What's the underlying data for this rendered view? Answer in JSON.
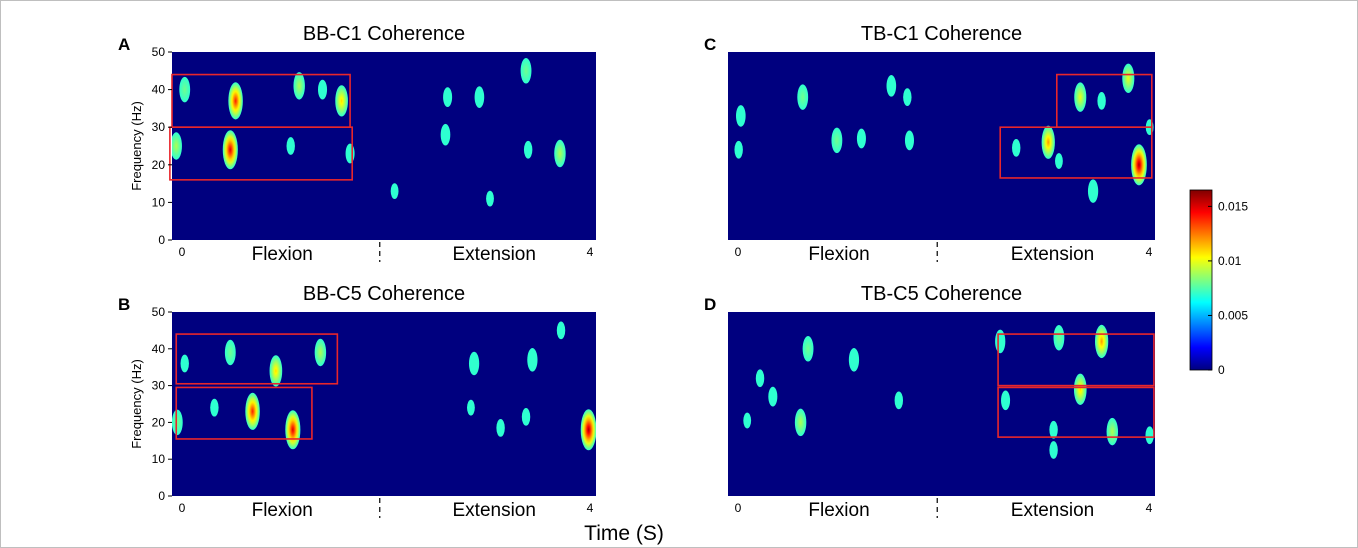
{
  "colors": {
    "background": "#00007f",
    "box": "#e8262b",
    "colormap": [
      "#00007f",
      "#0000ff",
      "#007fff",
      "#00ffff",
      "#7fff7f",
      "#ffff00",
      "#ff7f00",
      "#ff0000",
      "#7f0000"
    ]
  },
  "figure": {
    "shared_xlabel": "Time (S)",
    "phase_left": "Flexion",
    "phase_right": "Extension",
    "t_start": "0",
    "t_end": "4"
  },
  "colorbar": {
    "min": 0,
    "max": 0.0165,
    "ticks": [
      "0",
      "0.005",
      "0.01",
      "0.015"
    ],
    "tick_values": [
      0,
      0.005,
      0.01,
      0.015
    ]
  },
  "chart_data": [
    {
      "type": "heatmap",
      "panel": "A",
      "title": "BB-C1 Coherence",
      "ylabel": "Frequency (Hz)",
      "ylim": [
        0,
        50
      ],
      "yticks": [
        "0",
        "10",
        "20",
        "30",
        "40",
        "50"
      ],
      "xlim": [
        0,
        4
      ],
      "boxes": [
        {
          "t": [
            0.0,
            1.68
          ],
          "f": [
            30,
            44
          ]
        },
        {
          "t": [
            -0.02,
            1.7
          ],
          "f": [
            16,
            30
          ]
        }
      ],
      "blobs": [
        {
          "t": 0.12,
          "f": 40,
          "v": 0.008
        },
        {
          "t": 0.6,
          "f": 37,
          "v": 0.014
        },
        {
          "t": 1.2,
          "f": 41,
          "v": 0.009
        },
        {
          "t": 1.42,
          "f": 40,
          "v": 0.005
        },
        {
          "t": 1.6,
          "f": 37,
          "v": 0.011
        },
        {
          "t": 0.55,
          "f": 24,
          "v": 0.015
        },
        {
          "t": 1.12,
          "f": 25,
          "v": 0.004
        },
        {
          "t": 1.68,
          "f": 23,
          "v": 0.005
        },
        {
          "t": 0.04,
          "f": 25,
          "v": 0.009
        },
        {
          "t": 2.6,
          "f": 38,
          "v": 0.005
        },
        {
          "t": 2.9,
          "f": 38,
          "v": 0.006
        },
        {
          "t": 3.34,
          "f": 45,
          "v": 0.008
        },
        {
          "t": 2.58,
          "f": 28,
          "v": 0.006
        },
        {
          "t": 3.36,
          "f": 24,
          "v": 0.004
        },
        {
          "t": 3.66,
          "f": 23,
          "v": 0.009
        },
        {
          "t": 2.1,
          "f": 13,
          "v": 0.003
        },
        {
          "t": 3.0,
          "f": 11,
          "v": 0.003
        }
      ]
    },
    {
      "type": "heatmap",
      "panel": "B",
      "title": "BB-C5 Coherence",
      "ylabel": "Frequency (Hz)",
      "ylim": [
        0,
        50
      ],
      "yticks": [
        "0",
        "10",
        "20",
        "30",
        "40",
        "50"
      ],
      "xlim": [
        0,
        4
      ],
      "boxes": [
        {
          "t": [
            0.04,
            1.56
          ],
          "f": [
            30.5,
            44
          ]
        },
        {
          "t": [
            0.04,
            1.32
          ],
          "f": [
            15.5,
            29.5
          ]
        }
      ],
      "blobs": [
        {
          "t": 0.12,
          "f": 36,
          "v": 0.004
        },
        {
          "t": 0.55,
          "f": 39,
          "v": 0.008
        },
        {
          "t": 0.98,
          "f": 34,
          "v": 0.011
        },
        {
          "t": 1.4,
          "f": 39,
          "v": 0.009
        },
        {
          "t": 0.4,
          "f": 24,
          "v": 0.004
        },
        {
          "t": 0.76,
          "f": 23,
          "v": 0.014
        },
        {
          "t": 1.14,
          "f": 18,
          "v": 0.015
        },
        {
          "t": 0.05,
          "f": 20,
          "v": 0.008
        },
        {
          "t": 2.85,
          "f": 36,
          "v": 0.007
        },
        {
          "t": 3.4,
          "f": 37,
          "v": 0.007
        },
        {
          "t": 3.67,
          "f": 45,
          "v": 0.004
        },
        {
          "t": 3.93,
          "f": 18,
          "v": 0.016
        },
        {
          "t": 3.1,
          "f": 18.5,
          "v": 0.004
        },
        {
          "t": 3.34,
          "f": 21.5,
          "v": 0.004
        },
        {
          "t": 2.82,
          "f": 24,
          "v": 0.003
        }
      ]
    },
    {
      "type": "heatmap",
      "panel": "C",
      "title": "TB-C1 Coherence",
      "ylabel": "",
      "ylim": [
        0,
        50
      ],
      "yticks": [],
      "xlim": [
        0,
        4
      ],
      "boxes": [
        {
          "t": [
            3.08,
            3.97
          ],
          "f": [
            30,
            44
          ]
        },
        {
          "t": [
            2.55,
            3.97
          ],
          "f": [
            16.5,
            30
          ]
        }
      ],
      "blobs": [
        {
          "t": 0.12,
          "f": 33,
          "v": 0.006
        },
        {
          "t": 0.7,
          "f": 38,
          "v": 0.008
        },
        {
          "t": 1.53,
          "f": 41,
          "v": 0.006
        },
        {
          "t": 1.68,
          "f": 38,
          "v": 0.004
        },
        {
          "t": 1.02,
          "f": 26.5,
          "v": 0.008
        },
        {
          "t": 1.25,
          "f": 27,
          "v": 0.005
        },
        {
          "t": 1.7,
          "f": 26.5,
          "v": 0.005
        },
        {
          "t": 0.1,
          "f": 24,
          "v": 0.004
        },
        {
          "t": 3.3,
          "f": 38,
          "v": 0.01
        },
        {
          "t": 3.5,
          "f": 37,
          "v": 0.004
        },
        {
          "t": 3.75,
          "f": 43,
          "v": 0.01
        },
        {
          "t": 3.95,
          "f": 30,
          "v": 0.003
        },
        {
          "t": 3.85,
          "f": 20,
          "v": 0.016
        },
        {
          "t": 3.0,
          "f": 26,
          "v": 0.012
        },
        {
          "t": 2.7,
          "f": 24.5,
          "v": 0.004
        },
        {
          "t": 3.42,
          "f": 13,
          "v": 0.007
        },
        {
          "t": 3.1,
          "f": 21,
          "v": 0.003
        }
      ]
    },
    {
      "type": "heatmap",
      "panel": "D",
      "title": "TB-C5 Coherence",
      "ylabel": "",
      "ylim": [
        0,
        50
      ],
      "yticks": [],
      "xlim": [
        0,
        4
      ],
      "boxes": [
        {
          "t": [
            2.53,
            3.99
          ],
          "f": [
            30,
            44
          ]
        },
        {
          "t": [
            2.53,
            3.99
          ],
          "f": [
            16,
            29.5
          ]
        }
      ],
      "blobs": [
        {
          "t": 0.3,
          "f": 32,
          "v": 0.004
        },
        {
          "t": 0.75,
          "f": 40,
          "v": 0.008
        },
        {
          "t": 1.18,
          "f": 37,
          "v": 0.007
        },
        {
          "t": 0.42,
          "f": 27,
          "v": 0.005
        },
        {
          "t": 0.68,
          "f": 20,
          "v": 0.009
        },
        {
          "t": 1.6,
          "f": 26,
          "v": 0.004
        },
        {
          "t": 0.18,
          "f": 20.5,
          "v": 0.003
        },
        {
          "t": 2.55,
          "f": 42,
          "v": 0.007
        },
        {
          "t": 3.1,
          "f": 43,
          "v": 0.008
        },
        {
          "t": 3.5,
          "f": 42,
          "v": 0.012
        },
        {
          "t": 3.3,
          "f": 29,
          "v": 0.011
        },
        {
          "t": 2.6,
          "f": 26,
          "v": 0.005
        },
        {
          "t": 3.05,
          "f": 18,
          "v": 0.004
        },
        {
          "t": 3.6,
          "f": 17.5,
          "v": 0.009
        },
        {
          "t": 3.95,
          "f": 16.5,
          "v": 0.004
        },
        {
          "t": 3.05,
          "f": 12.5,
          "v": 0.004
        }
      ]
    }
  ]
}
